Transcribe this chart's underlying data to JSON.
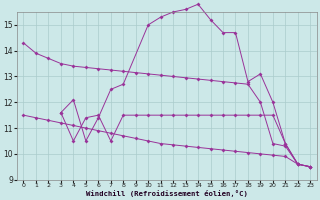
{
  "xlabel": "Windchill (Refroidissement éolien,°C)",
  "background_color": "#cce8e8",
  "line_color": "#993399",
  "grid_color": "#aacccc",
  "xlim": [
    -0.5,
    23.5
  ],
  "ylim": [
    9,
    15.5
  ],
  "yticks": [
    9,
    10,
    11,
    12,
    13,
    14,
    15
  ],
  "xticks": [
    0,
    1,
    2,
    3,
    4,
    5,
    6,
    7,
    8,
    9,
    10,
    11,
    12,
    13,
    14,
    15,
    16,
    17,
    18,
    19,
    20,
    21,
    22,
    23
  ],
  "s1_x": [
    0,
    1,
    2,
    3,
    4,
    5,
    6,
    7,
    8,
    9,
    10,
    11,
    12,
    13,
    14,
    15,
    16,
    17,
    18,
    19,
    20,
    21,
    22,
    23
  ],
  "s1_y": [
    14.3,
    13.9,
    13.7,
    13.5,
    13.4,
    13.35,
    13.3,
    13.25,
    13.2,
    13.15,
    13.1,
    13.05,
    13.0,
    12.95,
    12.9,
    12.85,
    12.8,
    12.75,
    12.7,
    12.0,
    10.4,
    10.3,
    9.6,
    9.5
  ],
  "s2_x": [
    0,
    1,
    2,
    3,
    4,
    5,
    6,
    7,
    8,
    9,
    10,
    11,
    12,
    13,
    14,
    15,
    16,
    17,
    18,
    19,
    20,
    21,
    22,
    23
  ],
  "s2_y": [
    11.5,
    11.4,
    11.3,
    11.2,
    11.1,
    11.0,
    10.9,
    10.8,
    10.7,
    10.6,
    10.5,
    10.4,
    10.35,
    10.3,
    10.25,
    10.2,
    10.15,
    10.1,
    10.05,
    10.0,
    9.95,
    9.9,
    9.6,
    9.5
  ],
  "s3_x": [
    3,
    4,
    5,
    6,
    7,
    8,
    10,
    11,
    12,
    13,
    14,
    15,
    16,
    17,
    18,
    19,
    20,
    21,
    22,
    23
  ],
  "s3_y": [
    11.6,
    12.1,
    10.5,
    11.4,
    12.5,
    12.7,
    15.0,
    15.3,
    15.5,
    15.6,
    15.8,
    15.2,
    14.7,
    14.7,
    12.8,
    13.1,
    12.0,
    10.4,
    9.6,
    9.5
  ],
  "s4_x": [
    3,
    4,
    5,
    6,
    7,
    8,
    9,
    10,
    11,
    12,
    13,
    14,
    15,
    16,
    17,
    18,
    19,
    20,
    21,
    22,
    23
  ],
  "s4_y": [
    11.6,
    10.5,
    11.4,
    11.5,
    10.5,
    11.5,
    11.5,
    11.5,
    11.5,
    11.5,
    11.5,
    11.5,
    11.5,
    11.5,
    11.5,
    11.5,
    11.5,
    11.5,
    10.4,
    9.6,
    9.5
  ]
}
